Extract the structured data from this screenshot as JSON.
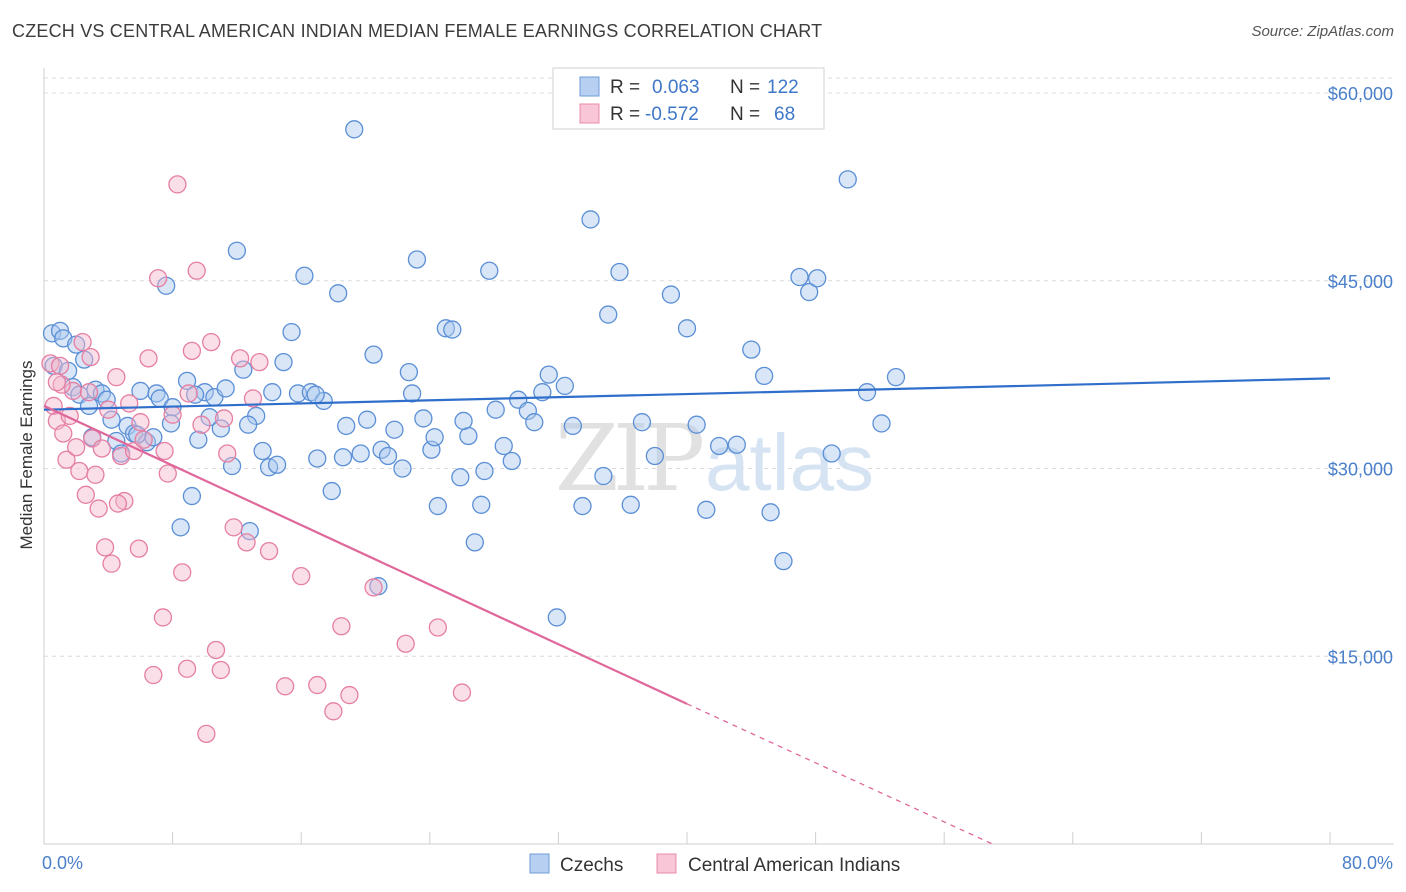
{
  "title": "CZECH VS CENTRAL AMERICAN INDIAN MEDIAN FEMALE EARNINGS CORRELATION CHART",
  "source": "Source: ZipAtlas.com",
  "watermark": {
    "zip": "ZIP",
    "atlas": "atlas"
  },
  "colors": {
    "blue_fill": "#a9c7ee",
    "blue_stroke": "#5b8fd6",
    "blue_line": "#2f6fcb",
    "pink_fill": "#f5b8cb",
    "pink_stroke": "#e57fa3",
    "pink_line": "#e0679a",
    "grid": "#dcdcdc",
    "tick_text": "#4a7fc9"
  },
  "legend": {
    "rows": [
      {
        "r_label": "R =",
        "r_value": "0.063",
        "n_label": "N =",
        "n_value": "122",
        "color": "blue"
      },
      {
        "r_label": "R =",
        "r_value": "-0.572",
        "n_label": "N =",
        "n_value": "68",
        "color": "pink"
      }
    ]
  },
  "chart_data": {
    "type": "scatter",
    "title": "CZECH VS CENTRAL AMERICAN INDIAN MEDIAN FEMALE EARNINGS CORRELATION CHART",
    "xlabel": "",
    "ylabel": "Median Female Earnings",
    "xlim": [
      0,
      80
    ],
    "ylim": [
      0,
      62000
    ],
    "x_tick_labels": [
      {
        "value": 0,
        "label": "0.0%"
      },
      {
        "value": 80,
        "label": "80.0%"
      }
    ],
    "y_ticks": [
      {
        "value": 15000,
        "label": "$15,000"
      },
      {
        "value": 30000,
        "label": "$30,000"
      },
      {
        "value": 45000,
        "label": "$45,000"
      },
      {
        "value": 60000,
        "label": "$60,000"
      }
    ],
    "grid": true,
    "legend_position": "bottom-center",
    "series": [
      {
        "name": "Czechs",
        "color": "#a9c7ee",
        "trend": {
          "x": [
            0,
            80
          ],
          "y": [
            34700,
            37200
          ],
          "dashed_after": null
        },
        "points": [
          [
            0.5,
            40800
          ],
          [
            0.6,
            38200
          ],
          [
            1.0,
            41000
          ],
          [
            1.2,
            40400
          ],
          [
            1.5,
            37800
          ],
          [
            1.8,
            36500
          ],
          [
            2.0,
            39900
          ],
          [
            2.2,
            35900
          ],
          [
            2.5,
            38700
          ],
          [
            2.8,
            35000
          ],
          [
            3.0,
            32500
          ],
          [
            3.2,
            36300
          ],
          [
            3.6,
            36000
          ],
          [
            3.9,
            35500
          ],
          [
            4.2,
            33900
          ],
          [
            4.5,
            32200
          ],
          [
            4.8,
            31200
          ],
          [
            5.2,
            33400
          ],
          [
            5.6,
            32800
          ],
          [
            6.0,
            36200
          ],
          [
            6.4,
            32100
          ],
          [
            6.8,
            32500
          ],
          [
            7.0,
            36000
          ],
          [
            7.2,
            35600
          ],
          [
            7.6,
            44600
          ],
          [
            8.0,
            34900
          ],
          [
            8.5,
            25300
          ],
          [
            8.9,
            37000
          ],
          [
            9.2,
            27800
          ],
          [
            9.6,
            32300
          ],
          [
            10.0,
            36100
          ],
          [
            10.3,
            34100
          ],
          [
            10.6,
            35700
          ],
          [
            11.0,
            33200
          ],
          [
            11.3,
            36400
          ],
          [
            11.7,
            30200
          ],
          [
            12.0,
            47400
          ],
          [
            12.4,
            37900
          ],
          [
            12.8,
            25000
          ],
          [
            13.2,
            34200
          ],
          [
            13.6,
            31400
          ],
          [
            14.0,
            30100
          ],
          [
            14.5,
            30300
          ],
          [
            14.9,
            38500
          ],
          [
            15.4,
            40900
          ],
          [
            15.8,
            36000
          ],
          [
            16.2,
            45400
          ],
          [
            16.6,
            36100
          ],
          [
            17.0,
            30800
          ],
          [
            17.4,
            35400
          ],
          [
            17.9,
            28200
          ],
          [
            18.3,
            44000
          ],
          [
            18.8,
            33400
          ],
          [
            19.3,
            57100
          ],
          [
            19.7,
            31200
          ],
          [
            20.1,
            33900
          ],
          [
            20.5,
            39100
          ],
          [
            21.0,
            31500
          ],
          [
            21.4,
            31000
          ],
          [
            21.8,
            33100
          ],
          [
            22.3,
            30000
          ],
          [
            22.7,
            37700
          ],
          [
            23.2,
            46700
          ],
          [
            23.6,
            34000
          ],
          [
            24.1,
            31500
          ],
          [
            24.5,
            27000
          ],
          [
            25.0,
            41200
          ],
          [
            25.4,
            41100
          ],
          [
            25.9,
            29300
          ],
          [
            26.4,
            32600
          ],
          [
            26.8,
            24100
          ],
          [
            27.2,
            27100
          ],
          [
            27.7,
            45800
          ],
          [
            28.1,
            34700
          ],
          [
            28.6,
            31800
          ],
          [
            29.1,
            30600
          ],
          [
            29.5,
            35500
          ],
          [
            30.1,
            34600
          ],
          [
            30.5,
            33700
          ],
          [
            31.0,
            36100
          ],
          [
            31.4,
            37500
          ],
          [
            31.9,
            18100
          ],
          [
            32.4,
            36600
          ],
          [
            32.9,
            33400
          ],
          [
            33.5,
            27000
          ],
          [
            34.0,
            49900
          ],
          [
            34.8,
            29400
          ],
          [
            35.1,
            42300
          ],
          [
            35.8,
            45700
          ],
          [
            36.5,
            27100
          ],
          [
            37.2,
            33700
          ],
          [
            38.0,
            31000
          ],
          [
            39.0,
            43900
          ],
          [
            40.0,
            41200
          ],
          [
            40.6,
            33500
          ],
          [
            41.2,
            26700
          ],
          [
            42.0,
            31800
          ],
          [
            43.1,
            31900
          ],
          [
            44.0,
            39500
          ],
          [
            44.8,
            37400
          ],
          [
            45.2,
            26500
          ],
          [
            46.0,
            22600
          ],
          [
            47.0,
            45300
          ],
          [
            47.6,
            44100
          ],
          [
            48.1,
            45200
          ],
          [
            49.0,
            31200
          ],
          [
            50.0,
            53100
          ],
          [
            51.2,
            36100
          ],
          [
            52.1,
            33600
          ],
          [
            53.0,
            37300
          ],
          [
            20.8,
            20600
          ],
          [
            22.9,
            36000
          ],
          [
            12.7,
            33500
          ],
          [
            5.8,
            32700
          ],
          [
            9.4,
            35900
          ],
          [
            7.9,
            33600
          ],
          [
            16.9,
            35900
          ],
          [
            18.6,
            30900
          ],
          [
            24.3,
            32500
          ],
          [
            27.4,
            29800
          ],
          [
            14.2,
            36100
          ],
          [
            26.1,
            33800
          ]
        ]
      },
      {
        "name": "Central American Indians",
        "color": "#f5b8cb",
        "trend": {
          "x": [
            0,
            40
          ],
          "y": [
            35000,
            11200
          ],
          "dashed_to": [
            59,
            0
          ]
        },
        "points": [
          [
            0.4,
            38400
          ],
          [
            0.6,
            35000
          ],
          [
            0.8,
            33800
          ],
          [
            1.0,
            38200
          ],
          [
            1.2,
            32800
          ],
          [
            1.4,
            30700
          ],
          [
            1.6,
            34200
          ],
          [
            1.8,
            36200
          ],
          [
            2.0,
            31700
          ],
          [
            2.2,
            29800
          ],
          [
            2.4,
            40100
          ],
          [
            2.6,
            27900
          ],
          [
            2.8,
            36100
          ],
          [
            3.0,
            32400
          ],
          [
            3.2,
            29500
          ],
          [
            3.4,
            26800
          ],
          [
            3.6,
            31600
          ],
          [
            3.8,
            23700
          ],
          [
            4.0,
            34700
          ],
          [
            4.2,
            22400
          ],
          [
            4.5,
            37300
          ],
          [
            4.8,
            31000
          ],
          [
            5.0,
            27400
          ],
          [
            5.3,
            35200
          ],
          [
            5.6,
            31400
          ],
          [
            5.9,
            23600
          ],
          [
            6.2,
            32300
          ],
          [
            6.5,
            38800
          ],
          [
            6.8,
            13500
          ],
          [
            7.1,
            45200
          ],
          [
            7.4,
            18100
          ],
          [
            7.7,
            29600
          ],
          [
            8.0,
            34300
          ],
          [
            8.3,
            52700
          ],
          [
            8.6,
            21700
          ],
          [
            8.9,
            14000
          ],
          [
            9.2,
            39400
          ],
          [
            9.5,
            45800
          ],
          [
            9.8,
            33500
          ],
          [
            10.1,
            8800
          ],
          [
            10.4,
            40100
          ],
          [
            10.7,
            15500
          ],
          [
            11.0,
            13900
          ],
          [
            11.4,
            31200
          ],
          [
            11.8,
            25300
          ],
          [
            12.2,
            38800
          ],
          [
            12.6,
            24100
          ],
          [
            13.0,
            35600
          ],
          [
            13.4,
            38500
          ],
          [
            14.0,
            23400
          ],
          [
            15.0,
            12600
          ],
          [
            16.0,
            21400
          ],
          [
            17.0,
            12700
          ],
          [
            18.0,
            10600
          ],
          [
            18.5,
            17400
          ],
          [
            19.0,
            11900
          ],
          [
            20.5,
            20500
          ],
          [
            22.5,
            16000
          ],
          [
            24.5,
            17300
          ],
          [
            26.0,
            12100
          ],
          [
            1.1,
            36700
          ],
          [
            2.9,
            38900
          ],
          [
            4.6,
            27200
          ],
          [
            6.0,
            33700
          ],
          [
            7.5,
            31400
          ],
          [
            9.0,
            36000
          ],
          [
            11.2,
            34000
          ],
          [
            0.8,
            36900
          ]
        ]
      }
    ]
  }
}
